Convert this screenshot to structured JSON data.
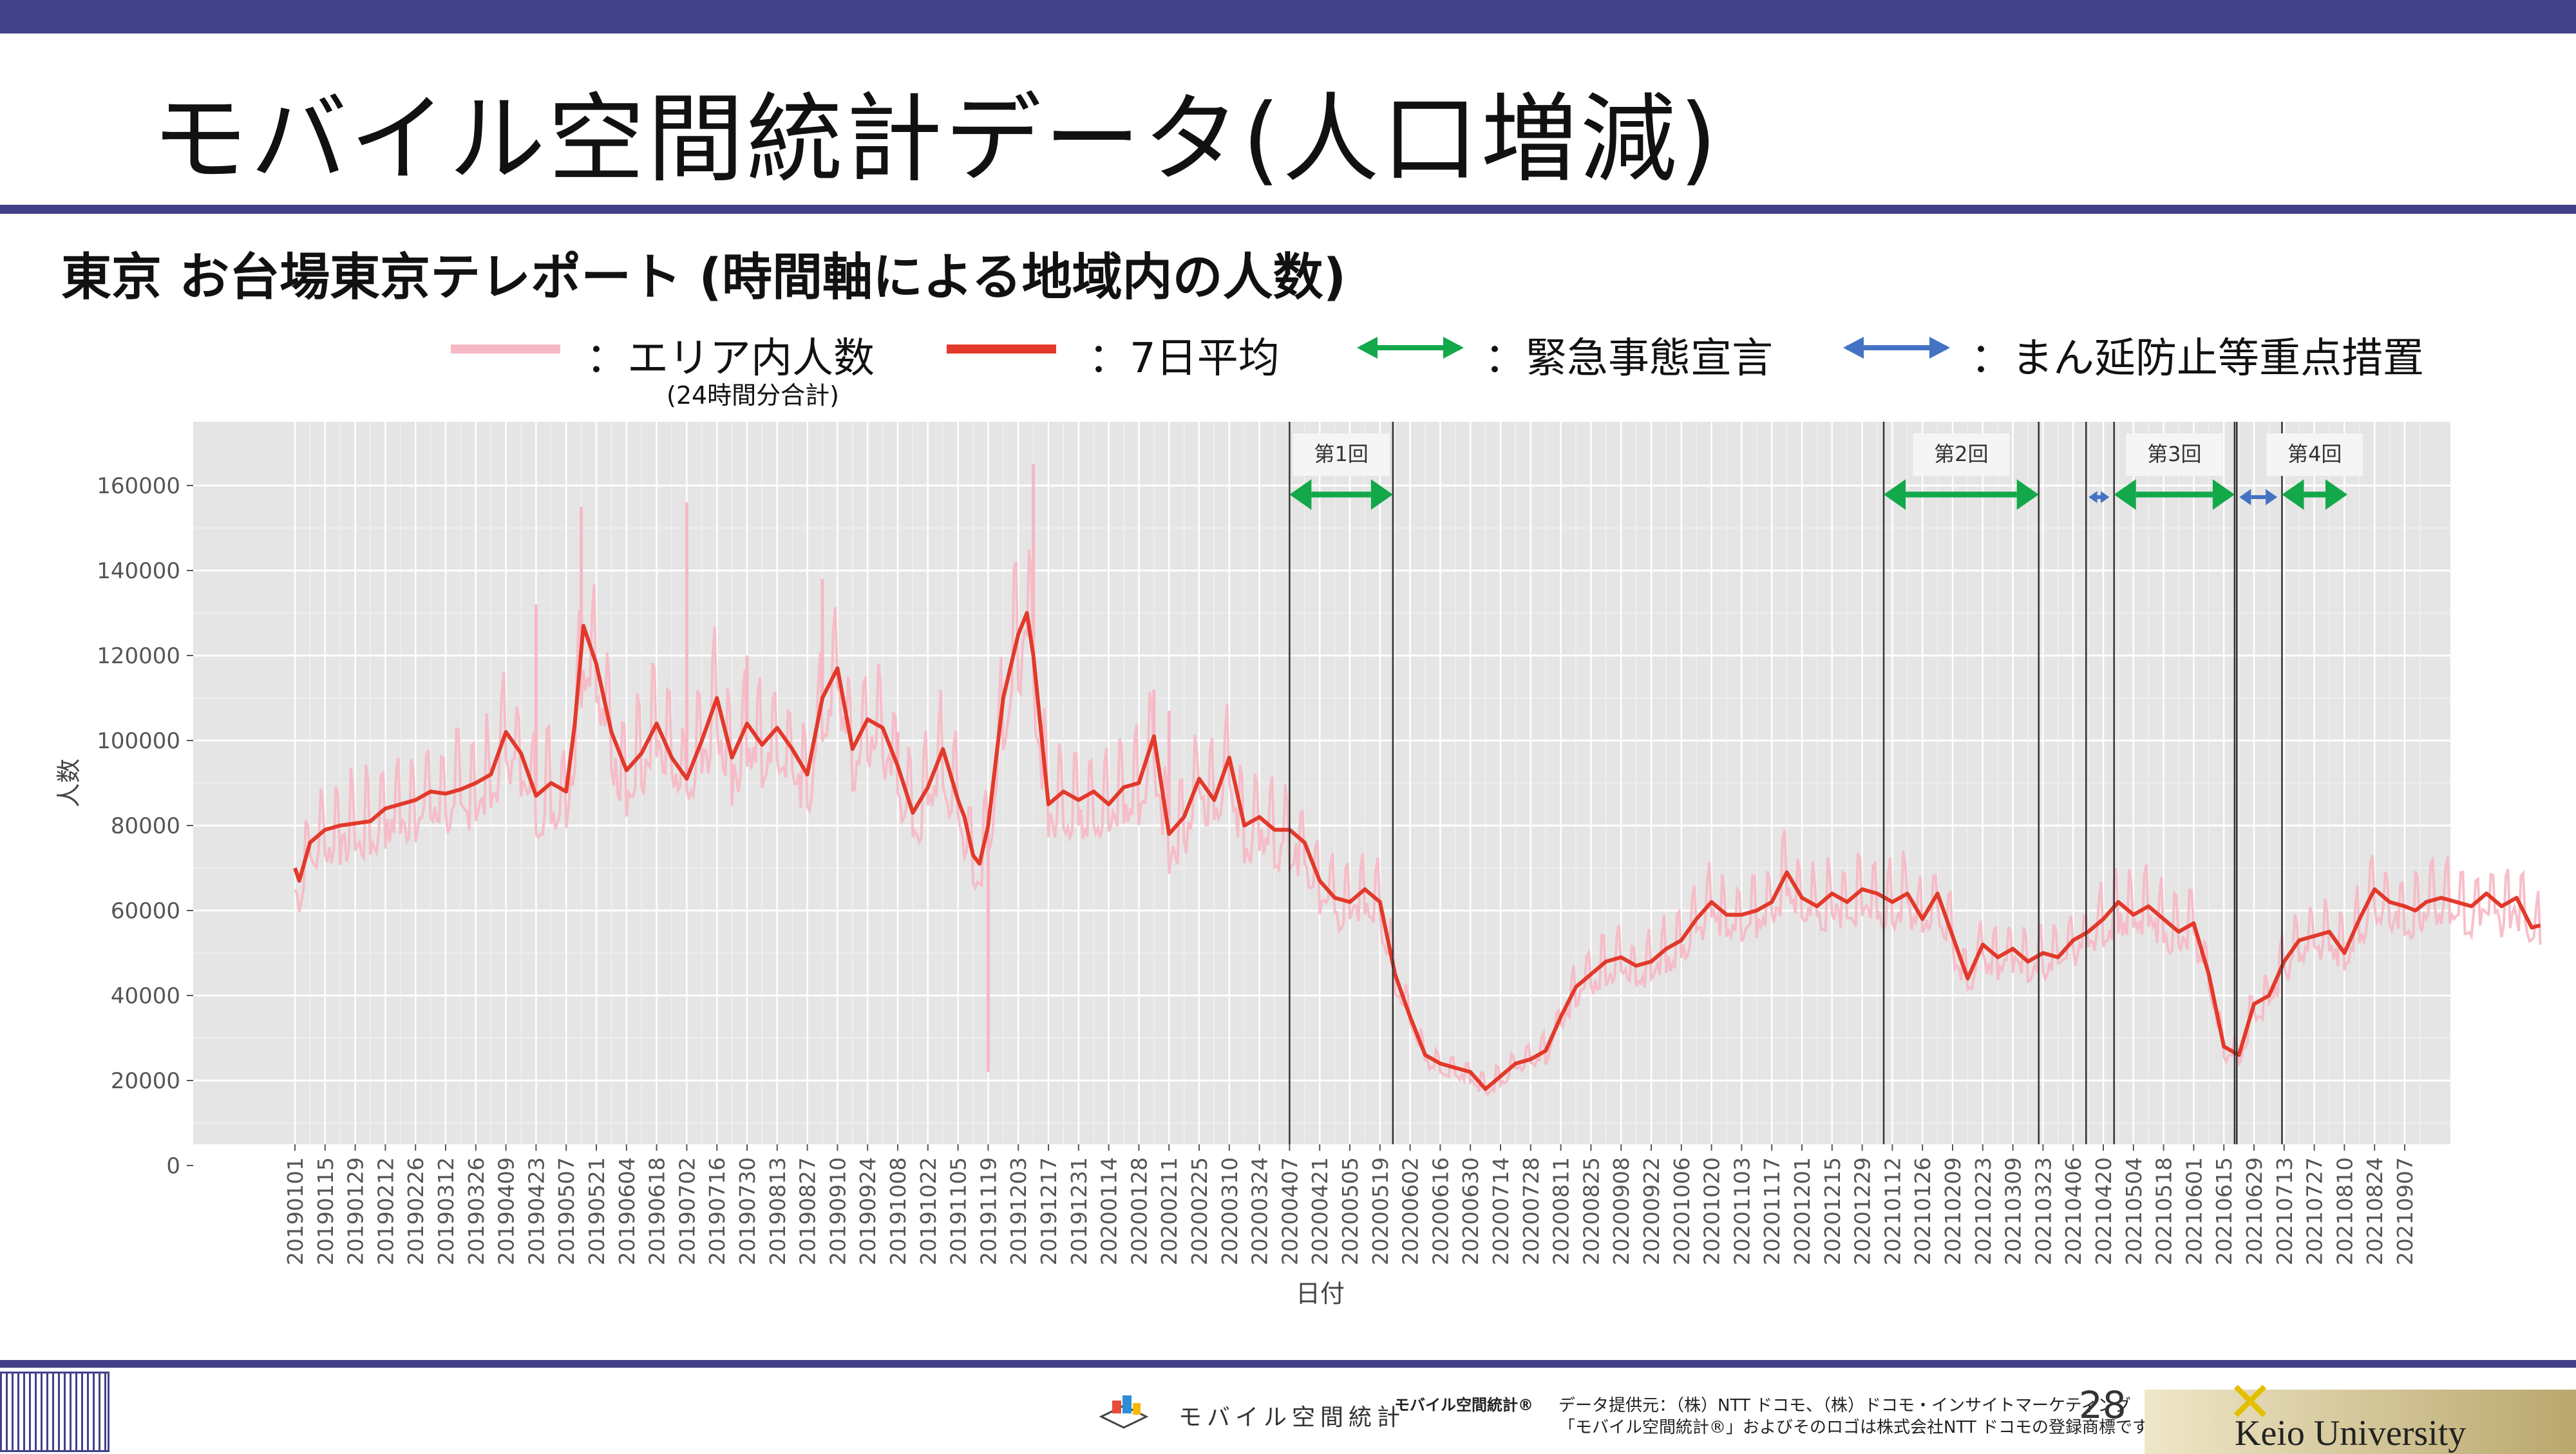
{
  "slide": {
    "title": "モバイル空間統計データ(人口増減)",
    "subtitle": "東京 お台場東京テレポート (時間軸による地域内の人数)",
    "page_number": "28"
  },
  "legend": {
    "area_count": "：エリア内人数",
    "area_count_note": "(24時間分合計)",
    "moving_avg": "：7日平均",
    "emergency": "：緊急事態宣言",
    "priority": "：まん延防止等重点措置"
  },
  "colors": {
    "area_count": "#f6b8c4",
    "moving_avg": "#e2392a",
    "emergency": "#13a84a",
    "priority": "#4472c4",
    "panel": "#e5e5e5",
    "bar": "#43408a"
  },
  "footer": {
    "mobile_logo_text": "モバイル空間統計",
    "mobile_brand": "モバイル空間統計®",
    "provider_line1": "データ提供元：（株）NTT ドコモ、（株）ドコモ・インサイトマーケティング",
    "provider_line2": "「モバイル空間統計®」およびそのロゴは株式会社NTT ドコモの登録商標です。",
    "university": "Keio University"
  },
  "chart_data": {
    "type": "line",
    "xlabel": "日付",
    "ylabel": "人数",
    "ylim": [
      0,
      170000
    ],
    "yticks": [
      0,
      20000,
      40000,
      60000,
      80000,
      100000,
      120000,
      140000,
      160000
    ],
    "grid": true,
    "date_range": [
      "20190101",
      "20210915"
    ],
    "xticks": [
      "20190101",
      "20190115",
      "20190129",
      "20190212",
      "20190226",
      "20190312",
      "20190326",
      "20190409",
      "20190423",
      "20190507",
      "20190521",
      "20190604",
      "20190618",
      "20190702",
      "20190716",
      "20190730",
      "20190813",
      "20190827",
      "20190910",
      "20190924",
      "20191008",
      "20191022",
      "20191105",
      "20191119",
      "20191203",
      "20191217",
      "20191231",
      "20200114",
      "20200128",
      "20200211",
      "20200225",
      "20200310",
      "20200324",
      "20200407",
      "20200421",
      "20200505",
      "20200519",
      "20200602",
      "20200616",
      "20200630",
      "20200714",
      "20200728",
      "20200811",
      "20200825",
      "20200908",
      "20200922",
      "20201006",
      "20201020",
      "20201103",
      "20201117",
      "20201201",
      "20201215",
      "20201229",
      "20210112",
      "20210126",
      "20210209",
      "20210223",
      "20210309",
      "20210323",
      "20210406",
      "20210420",
      "20210504",
      "20210518",
      "20210601",
      "20210615",
      "20210629",
      "20210713",
      "20210727",
      "20210810",
      "20210824",
      "20210907"
    ],
    "series": [
      {
        "name": "7日平均",
        "points": [
          [
            "20190101",
            70000
          ],
          [
            "20190103",
            67000
          ],
          [
            "20190108",
            76000
          ],
          [
            "20190115",
            79000
          ],
          [
            "20190122",
            80000
          ],
          [
            "20190129",
            80500
          ],
          [
            "20190205",
            81000
          ],
          [
            "20190212",
            84000
          ],
          [
            "20190219",
            85000
          ],
          [
            "20190226",
            86000
          ],
          [
            "20190305",
            88000
          ],
          [
            "20190312",
            87500
          ],
          [
            "20190319",
            88500
          ],
          [
            "20190326",
            90000
          ],
          [
            "20190402",
            92000
          ],
          [
            "20190409",
            102000
          ],
          [
            "20190416",
            97000
          ],
          [
            "20190423",
            87000
          ],
          [
            "20190430",
            90000
          ],
          [
            "20190507",
            88000
          ],
          [
            "20190511",
            104000
          ],
          [
            "20190515",
            127000
          ],
          [
            "20190521",
            118000
          ],
          [
            "20190528",
            102000
          ],
          [
            "20190604",
            93000
          ],
          [
            "20190611",
            97000
          ],
          [
            "20190618",
            104000
          ],
          [
            "20190625",
            96000
          ],
          [
            "20190702",
            91000
          ],
          [
            "20190709",
            100000
          ],
          [
            "20190716",
            110000
          ],
          [
            "20190723",
            96000
          ],
          [
            "20190730",
            104000
          ],
          [
            "20190806",
            99000
          ],
          [
            "20190813",
            103000
          ],
          [
            "20190820",
            98000
          ],
          [
            "20190827",
            92000
          ],
          [
            "20190903",
            110000
          ],
          [
            "20190910",
            117000
          ],
          [
            "20190917",
            98000
          ],
          [
            "20190924",
            105000
          ],
          [
            "20191001",
            103000
          ],
          [
            "20191008",
            94000
          ],
          [
            "20191015",
            83000
          ],
          [
            "20191022",
            89000
          ],
          [
            "20191029",
            98000
          ],
          [
            "20191105",
            86000
          ],
          [
            "20191108",
            82000
          ],
          [
            "20191112",
            73000
          ],
          [
            "20191115",
            71000
          ],
          [
            "20191119",
            80000
          ],
          [
            "20191126",
            110000
          ],
          [
            "20191203",
            125000
          ],
          [
            "20191207",
            130000
          ],
          [
            "20191210",
            120000
          ],
          [
            "20191217",
            85000
          ],
          [
            "20191224",
            88000
          ],
          [
            "20191231",
            86000
          ],
          [
            "20200107",
            88000
          ],
          [
            "20200114",
            85000
          ],
          [
            "20200121",
            89000
          ],
          [
            "20200128",
            90000
          ],
          [
            "20200204",
            101000
          ],
          [
            "20200211",
            78000
          ],
          [
            "20200218",
            82000
          ],
          [
            "20200225",
            91000
          ],
          [
            "20200303",
            86000
          ],
          [
            "20200310",
            96000
          ],
          [
            "20200317",
            80000
          ],
          [
            "20200324",
            82000
          ],
          [
            "20200331",
            79000
          ],
          [
            "20200407",
            79000
          ],
          [
            "20200414",
            76000
          ],
          [
            "20200421",
            67000
          ],
          [
            "20200428",
            63000
          ],
          [
            "20200505",
            62000
          ],
          [
            "20200512",
            65000
          ],
          [
            "20200519",
            62000
          ],
          [
            "20200526",
            45000
          ],
          [
            "20200602",
            35000
          ],
          [
            "20200609",
            26000
          ],
          [
            "20200616",
            24000
          ],
          [
            "20200623",
            23000
          ],
          [
            "20200630",
            22000
          ],
          [
            "20200707",
            18000
          ],
          [
            "20200714",
            21000
          ],
          [
            "20200721",
            24000
          ],
          [
            "20200728",
            25000
          ],
          [
            "20200804",
            27000
          ],
          [
            "20200811",
            35000
          ],
          [
            "20200818",
            42000
          ],
          [
            "20200825",
            45000
          ],
          [
            "20200901",
            48000
          ],
          [
            "20200908",
            49000
          ],
          [
            "20200915",
            47000
          ],
          [
            "20200922",
            48000
          ],
          [
            "20200929",
            51000
          ],
          [
            "20201006",
            53000
          ],
          [
            "20201013",
            58000
          ],
          [
            "20201020",
            62000
          ],
          [
            "20201027",
            59000
          ],
          [
            "20201103",
            59000
          ],
          [
            "20201110",
            60000
          ],
          [
            "20201117",
            62000
          ],
          [
            "20201124",
            69000
          ],
          [
            "20201201",
            63000
          ],
          [
            "20201208",
            61000
          ],
          [
            "20201215",
            64000
          ],
          [
            "20201222",
            62000
          ],
          [
            "20201229",
            65000
          ],
          [
            "20210105",
            64000
          ],
          [
            "20210112",
            62000
          ],
          [
            "20210119",
            64000
          ],
          [
            "20210126",
            58000
          ],
          [
            "20210202",
            64000
          ],
          [
            "20210209",
            54000
          ],
          [
            "20210216",
            44000
          ],
          [
            "20210223",
            52000
          ],
          [
            "20210302",
            49000
          ],
          [
            "20210309",
            51000
          ],
          [
            "20210316",
            48000
          ],
          [
            "20210323",
            50000
          ],
          [
            "20210330",
            49000
          ],
          [
            "20210406",
            53000
          ],
          [
            "20210413",
            55000
          ],
          [
            "20210420",
            58000
          ],
          [
            "20210427",
            62000
          ],
          [
            "20210504",
            59000
          ],
          [
            "20210511",
            61000
          ],
          [
            "20210518",
            58000
          ],
          [
            "20210525",
            55000
          ],
          [
            "20210601",
            57000
          ],
          [
            "20210608",
            45000
          ],
          [
            "20210615",
            28000
          ],
          [
            "20210622",
            26000
          ],
          [
            "20210629",
            38000
          ],
          [
            "20210706",
            40000
          ],
          [
            "20210713",
            48000
          ],
          [
            "20210720",
            53000
          ],
          [
            "20210727",
            54000
          ],
          [
            "20210803",
            55000
          ],
          [
            "20210810",
            50000
          ],
          [
            "20210817",
            58000
          ],
          [
            "20210824",
            65000
          ],
          [
            "20210831",
            62000
          ],
          [
            "20210907",
            61000
          ],
          [
            "20210912",
            60000
          ],
          [
            "20210917",
            62000
          ],
          [
            "20210924",
            63000
          ],
          [
            "20211001",
            62000
          ],
          [
            "20211008",
            61000
          ],
          [
            "20211015",
            64000
          ],
          [
            "20211022",
            61000
          ],
          [
            "20211029",
            63000
          ],
          [
            "20211105",
            56000
          ],
          [
            "20211109",
            56500
          ]
        ]
      },
      {
        "name": "エリア内人数",
        "spikes": [
          [
            "20190423",
            132000
          ],
          [
            "20190514",
            155000
          ],
          [
            "20190702",
            156000
          ],
          [
            "20190730",
            120000
          ],
          [
            "20190903",
            138000
          ],
          [
            "20191008",
            102000
          ],
          [
            "20191119",
            22000
          ],
          [
            "20191210",
            165000
          ],
          [
            "20200204",
            112000
          ],
          [
            "20200211",
            107000
          ]
        ]
      }
    ],
    "emergency_periods": [
      {
        "label": "第1回",
        "start": "20200407",
        "end": "20200525"
      },
      {
        "label": "第2回",
        "start": "20210108",
        "end": "20210321"
      },
      {
        "label": "第3回",
        "start": "20210425",
        "end": "20210620"
      },
      {
        "label": "第4回",
        "start": "20210712",
        "end": "20210930"
      }
    ],
    "priority_periods": [
      {
        "start": "20210412",
        "end": "20210424"
      },
      {
        "start": "20210621",
        "end": "20210711"
      }
    ]
  }
}
